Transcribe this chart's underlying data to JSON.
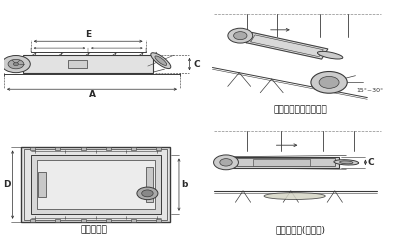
{
  "bg_color": "#ffffff",
  "line_color": "#3a3a3a",
  "dim_color": "#2a2a2a",
  "light_gray": "#cccccc",
  "mid_gray": "#aaaaaa",
  "dark_gray": "#888888",
  "labels": {
    "bottom_left_caption": "外形尺寸圖",
    "top_right_caption": "安裝示意圖（傾斜式）",
    "bottom_right_caption": "安裝示意圖(水平式)",
    "angle_label": "15°~30°",
    "dim_A": "A",
    "dim_E": "E",
    "dim_C": "C",
    "dim_D": "D",
    "dim_b": "b"
  },
  "font_size_caption": 6.5,
  "font_size_dim": 5.5
}
